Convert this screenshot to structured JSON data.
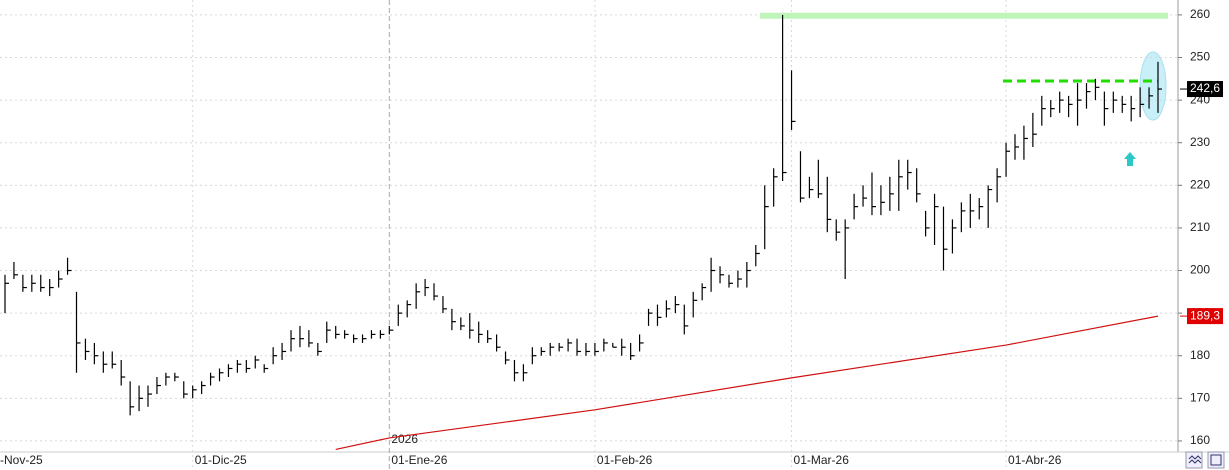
{
  "chart_data": {
    "type": "ohlc",
    "categories": [
      "-Nov-25",
      null,
      null,
      null,
      null,
      null,
      null,
      null,
      null,
      null,
      null,
      null,
      null,
      null,
      null,
      null,
      null,
      null,
      null,
      null,
      null,
      "01-Dic-25",
      null,
      null,
      null,
      null,
      null,
      null,
      null,
      null,
      null,
      null,
      null,
      null,
      null,
      null,
      null,
      null,
      null,
      null,
      null,
      null,
      null,
      "01-Ene-26",
      null,
      null,
      null,
      null,
      null,
      null,
      null,
      null,
      null,
      null,
      null,
      null,
      null,
      null,
      null,
      null,
      null,
      null,
      null,
      null,
      null,
      null,
      "01-Feb-26",
      null,
      null,
      null,
      null,
      null,
      null,
      null,
      null,
      null,
      null,
      null,
      null,
      null,
      null,
      null,
      null,
      null,
      null,
      null,
      null,
      null,
      "01-Mar-26",
      null,
      null,
      null,
      null,
      null,
      null,
      null,
      null,
      null,
      null,
      null,
      null,
      null,
      null,
      null,
      null,
      null,
      null,
      null,
      null,
      null,
      null,
      null,
      "01-Abr-26",
      null,
      null,
      null,
      null,
      null,
      null,
      null,
      null,
      null,
      null,
      null,
      null,
      null,
      null,
      null,
      null,
      null
    ],
    "high": [
      199,
      202,
      199,
      199,
      199,
      198,
      200,
      203,
      195,
      184,
      183,
      181,
      181,
      179,
      174,
      173,
      173,
      175,
      176,
      176,
      174,
      173,
      174,
      176,
      177,
      178,
      179,
      179,
      180,
      178,
      182,
      183,
      186,
      187,
      186,
      183,
      188,
      187,
      186,
      185,
      185,
      186,
      186,
      187,
      192,
      193,
      197,
      198,
      197,
      194,
      191,
      189,
      190,
      188,
      186,
      185,
      181,
      179,
      178,
      182,
      182,
      183,
      183,
      184,
      184,
      183,
      183,
      184,
      183,
      184,
      183,
      185,
      191,
      192,
      193,
      194,
      192,
      195,
      197,
      203,
      201,
      199,
      200,
      202,
      206,
      220,
      224,
      260,
      247,
      228,
      222,
      226,
      222,
      212,
      212,
      218,
      220,
      223,
      220,
      222,
      226,
      226,
      224,
      214,
      218,
      215,
      212,
      216,
      218,
      217,
      220,
      224,
      230,
      232,
      234,
      237,
      241,
      240,
      242,
      241,
      244,
      244,
      245,
      242,
      242,
      241,
      241,
      243,
      243,
      249
    ],
    "low": [
      190,
      198,
      195,
      195,
      195,
      194,
      196,
      199,
      176,
      179,
      178,
      176,
      177,
      173,
      166,
      167,
      168,
      171,
      173,
      174,
      170,
      170,
      171,
      173,
      174,
      175,
      176,
      176,
      177,
      176,
      178,
      179,
      181,
      182,
      182,
      180,
      183,
      184,
      184,
      183,
      183,
      184,
      184,
      185,
      187,
      189,
      191,
      194,
      193,
      190,
      186,
      186,
      184,
      183,
      183,
      181,
      178,
      174,
      174,
      178,
      180,
      180,
      181,
      181,
      180,
      180,
      180,
      181,
      182,
      180,
      179,
      181,
      187,
      187,
      189,
      190,
      185,
      189,
      193,
      195,
      197,
      196,
      196,
      196,
      201,
      205,
      215,
      221,
      233,
      216,
      217,
      217,
      209,
      207,
      198,
      212,
      215,
      213,
      213,
      214,
      214,
      219,
      216,
      208,
      206,
      200,
      204,
      209,
      210,
      212,
      210,
      216,
      222,
      226,
      226,
      229,
      234,
      236,
      237,
      236,
      234,
      238,
      240,
      234,
      237,
      237,
      235,
      236,
      238,
      237
    ],
    "close": [
      197,
      199,
      196,
      197,
      196,
      196,
      198,
      200,
      183,
      181,
      180,
      178,
      178,
      175,
      168,
      170,
      171,
      173,
      175,
      175,
      171,
      172,
      173,
      175,
      176,
      177,
      178,
      177,
      179,
      177,
      180,
      181,
      184,
      184,
      183,
      181,
      186,
      185,
      185,
      184,
      184,
      185,
      185,
      186,
      190,
      192,
      195,
      196,
      194,
      191,
      188,
      187,
      186,
      185,
      184,
      182,
      179,
      176,
      176,
      180,
      181,
      182,
      182,
      183,
      181,
      181,
      181,
      183,
      182,
      182,
      180,
      183,
      190,
      189,
      191,
      192,
      187,
      193,
      196,
      200,
      199,
      197,
      198,
      200,
      204,
      215,
      222,
      223,
      235,
      217,
      219,
      218,
      212,
      209,
      210,
      215,
      217,
      215,
      216,
      218,
      222,
      223,
      218,
      210,
      215,
      205,
      210,
      214,
      214,
      215,
      219,
      222,
      228,
      229,
      231,
      232,
      238,
      238,
      240,
      239,
      240,
      242,
      243,
      238,
      240,
      239,
      238,
      239,
      241,
      242.6
    ],
    "bar_color": "#000000",
    "moving_average": {
      "x": [
        37,
        43,
        66,
        88,
        112,
        129
      ],
      "values": [
        158,
        160.7,
        167.3,
        174.8,
        182.5,
        189.3
      ],
      "color": "#d01010"
    },
    "price_tags": [
      {
        "value": 242.6,
        "label": "242,6",
        "color": "#000000"
      },
      {
        "value": 189.3,
        "label": "189,3",
        "color": "#e00000"
      }
    ],
    "levels": [
      {
        "value": 259.8,
        "color": "#bff5b8",
        "style": "solid"
      },
      {
        "value": 244.5,
        "color": "#22dd00",
        "style": "dashed"
      }
    ],
    "year_label": "2026",
    "ylim": [
      157.4,
      263.5
    ],
    "yticks": [
      160,
      170,
      180,
      190,
      200,
      210,
      220,
      230,
      240,
      250,
      260
    ],
    "grid": true
  }
}
